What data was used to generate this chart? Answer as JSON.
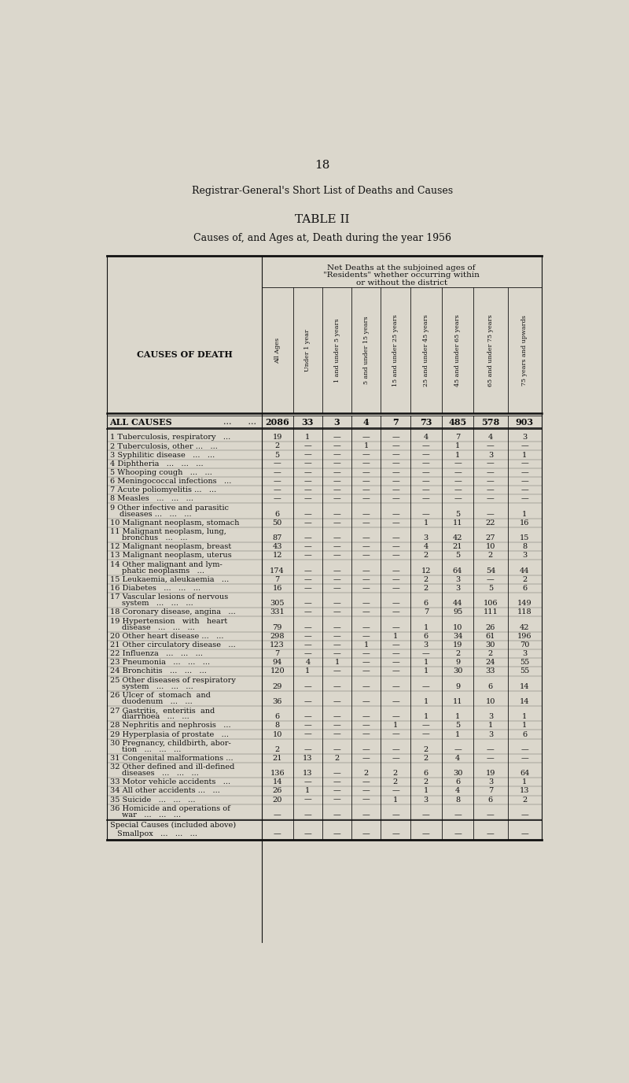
{
  "page_number": "18",
  "title1": "Registrar-General's Short List of Deaths and Causes",
  "title2": "TABLE II",
  "title3": "Causes of, and Ages at, Death during the year 1956",
  "row_label_header": "CAUSES OF DEATH",
  "all_causes_label": "ALL CAUSES",
  "all_causes_dots": "...      ...",
  "all_causes_data": [
    "2086",
    "33",
    "3",
    "4",
    "7",
    "73",
    "485",
    "578",
    "903"
  ],
  "rows": [
    {
      "num": "1",
      "label": "Tuberculosis, respiratory   ...",
      "wrap": false,
      "data": [
        "19",
        "1",
        "—",
        "—",
        "—",
        "4",
        "7",
        "4",
        "3"
      ]
    },
    {
      "num": "2",
      "label": "Tuberculosis, other ...   ...",
      "wrap": false,
      "data": [
        "2",
        "—",
        "—",
        "1",
        "—",
        "—",
        "1",
        "—",
        "—"
      ]
    },
    {
      "num": "3",
      "label": "Syphilitic disease   ...   ...",
      "wrap": false,
      "data": [
        "5",
        "—",
        "—",
        "—",
        "—",
        "—",
        "1",
        "3",
        "1"
      ]
    },
    {
      "num": "4",
      "label": "Diphtheria   ...   ...   ...",
      "wrap": false,
      "data": [
        "—",
        "—",
        "—",
        "—",
        "—",
        "—",
        "—",
        "—",
        "—"
      ]
    },
    {
      "num": "5",
      "label": "Whooping cough   ...   ...",
      "wrap": false,
      "data": [
        "—",
        "—",
        "—",
        "—",
        "—",
        "—",
        "—",
        "—",
        "—"
      ]
    },
    {
      "num": "6",
      "label": "Meningococcal infections   ...",
      "wrap": false,
      "data": [
        "—",
        "—",
        "—",
        "—",
        "—",
        "—",
        "—",
        "—",
        "—"
      ]
    },
    {
      "num": "7",
      "label": "Acute poliomyelitis ...   ...",
      "wrap": false,
      "data": [
        "—",
        "—",
        "—",
        "—",
        "—",
        "—",
        "—",
        "—",
        "—"
      ]
    },
    {
      "num": "8",
      "label": "Measles   ...   ...   ...",
      "wrap": false,
      "data": [
        "—",
        "—",
        "—",
        "—",
        "—",
        "—",
        "—",
        "—",
        "—"
      ]
    },
    {
      "num": "9",
      "label": "Other infective and parasitic",
      "label2": "diseases ...   ...   ...",
      "wrap": true,
      "data": [
        "6",
        "—",
        "—",
        "—",
        "—",
        "—",
        "5",
        "—",
        "1"
      ]
    },
    {
      "num": "10",
      "label": "Malignant neoplasm, stomach",
      "wrap": false,
      "data": [
        "50",
        "—",
        "—",
        "—",
        "—",
        "1",
        "11",
        "22",
        "16"
      ]
    },
    {
      "num": "11",
      "label": "Malignant neoplasm, lung,",
      "label2": "bronchus   ...   ...",
      "wrap": true,
      "data": [
        "87",
        "—",
        "—",
        "—",
        "—",
        "3",
        "42",
        "27",
        "15"
      ]
    },
    {
      "num": "12",
      "label": "Malignant neoplasm, breast",
      "wrap": false,
      "data": [
        "43",
        "—",
        "—",
        "—",
        "—",
        "4",
        "21",
        "10",
        "8"
      ]
    },
    {
      "num": "13",
      "label": "Malignant neoplasm, uterus",
      "wrap": false,
      "data": [
        "12",
        "—",
        "—",
        "—",
        "—",
        "2",
        "5",
        "2",
        "3"
      ]
    },
    {
      "num": "14",
      "label": "Other malignant and lym-",
      "label2": "phatic neoplasms   ...",
      "wrap": true,
      "data": [
        "174",
        "—",
        "—",
        "—",
        "—",
        "12",
        "64",
        "54",
        "44"
      ]
    },
    {
      "num": "15",
      "label": "Leukaemia, aleukaemia   ...",
      "wrap": false,
      "data": [
        "7",
        "—",
        "—",
        "—",
        "—",
        "2",
        "3",
        "—",
        "2"
      ]
    },
    {
      "num": "16",
      "label": "Diabetes   ...   ...   ...",
      "wrap": false,
      "data": [
        "16",
        "—",
        "—",
        "—",
        "—",
        "2",
        "3",
        "5",
        "6"
      ]
    },
    {
      "num": "17",
      "label": "Vascular lesions of nervous",
      "label2": "system   ...   ...   ...",
      "wrap": true,
      "data": [
        "305",
        "—",
        "—",
        "—",
        "—",
        "6",
        "44",
        "106",
        "149"
      ]
    },
    {
      "num": "18",
      "label": "Coronary disease, angina   ...",
      "wrap": false,
      "data": [
        "331",
        "—",
        "—",
        "—",
        "—",
        "7",
        "95",
        "111",
        "118"
      ]
    },
    {
      "num": "19",
      "label": "Hypertension   with   heart",
      "label2": "disease   ...   ...   ...",
      "wrap": true,
      "data": [
        "79",
        "—",
        "—",
        "—",
        "—",
        "1",
        "10",
        "26",
        "42"
      ]
    },
    {
      "num": "20",
      "label": "Other heart disease ...   ...",
      "wrap": false,
      "data": [
        "298",
        "—",
        "—",
        "—",
        "1",
        "6",
        "34",
        "61",
        "196"
      ]
    },
    {
      "num": "21",
      "label": "Other circulatory disease   ...",
      "wrap": false,
      "data": [
        "123",
        "—",
        "—",
        "1",
        "—",
        "3",
        "19",
        "30",
        "70"
      ]
    },
    {
      "num": "22",
      "label": "Influenza   ...   ...   ...",
      "wrap": false,
      "data": [
        "7",
        "—",
        "—",
        "—",
        "—",
        "—",
        "2",
        "2",
        "3"
      ]
    },
    {
      "num": "23",
      "label": "Pneumonia   ...   ...   ...",
      "wrap": false,
      "data": [
        "94",
        "4",
        "1",
        "—",
        "—",
        "1",
        "9",
        "24",
        "55"
      ]
    },
    {
      "num": "24",
      "label": "Bronchitis   ...   ...   ...",
      "wrap": false,
      "data": [
        "120",
        "1",
        "—",
        "—",
        "—",
        "1",
        "30",
        "33",
        "55"
      ]
    },
    {
      "num": "25",
      "label": "Other diseases of respiratory",
      "label2": "system   ...   ...   ...",
      "wrap": true,
      "data": [
        "29",
        "—",
        "—",
        "—",
        "—",
        "—",
        "9",
        "6",
        "14"
      ]
    },
    {
      "num": "26",
      "label": "Ulcer of  stomach  and",
      "label2": "duodenum   ...   ...",
      "wrap": true,
      "data": [
        "36",
        "—",
        "—",
        "—",
        "—",
        "1",
        "11",
        "10",
        "14"
      ]
    },
    {
      "num": "27",
      "label": "Gastritis,  enteritis  and",
      "label2": "diarrhoea   ...   ...",
      "wrap": true,
      "data": [
        "6",
        "—",
        "—",
        "—",
        "—",
        "1",
        "1",
        "3",
        "1"
      ]
    },
    {
      "num": "28",
      "label": "Nephritis and nephrosis   ...",
      "wrap": false,
      "data": [
        "8",
        "—",
        "—",
        "—",
        "1",
        "—",
        "5",
        "1",
        "1"
      ]
    },
    {
      "num": "29",
      "label": "Hyperplasia of prostate   ...",
      "wrap": false,
      "data": [
        "10",
        "—",
        "—",
        "—",
        "—",
        "—",
        "1",
        "3",
        "6"
      ]
    },
    {
      "num": "30",
      "label": "Pregnancy, childbirth, abor-",
      "label2": "tion   ...   ...   ...",
      "wrap": true,
      "data": [
        "2",
        "—",
        "—",
        "—",
        "—",
        "2",
        "—",
        "—",
        "—"
      ]
    },
    {
      "num": "31",
      "label": "Congenital malformations ...",
      "wrap": false,
      "data": [
        "21",
        "13",
        "2",
        "—",
        "—",
        "2",
        "4",
        "—",
        "—"
      ]
    },
    {
      "num": "32",
      "label": "Other defined and ill-defined",
      "label2": "diseases   ...   ...   ...",
      "wrap": true,
      "data": [
        "136",
        "13",
        "—",
        "2",
        "2",
        "6",
        "30",
        "19",
        "64"
      ]
    },
    {
      "num": "33",
      "label": "Motor vehicle accidents   ...",
      "wrap": false,
      "data": [
        "14",
        "—",
        "—",
        "—",
        "2",
        "2",
        "6",
        "3",
        "1"
      ]
    },
    {
      "num": "34",
      "label": "All other accidents ...   ...",
      "wrap": false,
      "data": [
        "26",
        "1",
        "—",
        "—",
        "—",
        "1",
        "4",
        "7",
        "13"
      ]
    },
    {
      "num": "35",
      "label": "Suicide   ...   ...   ...",
      "wrap": false,
      "data": [
        "20",
        "—",
        "—",
        "—",
        "1",
        "3",
        "8",
        "6",
        "2"
      ]
    },
    {
      "num": "36",
      "label": "Homicide and operations of",
      "label2": "war   ...   ...   ...",
      "wrap": true,
      "data": [
        "—",
        "—",
        "—",
        "—",
        "—",
        "—",
        "—",
        "—",
        "—"
      ]
    }
  ],
  "special_causes_header": "Special Causes (included above)",
  "special_smallpox_label": "Smallpox   ...   ...   ...",
  "special_smallpox_data": [
    "—",
    "—",
    "—",
    "—",
    "—",
    "—",
    "—",
    "—",
    "—"
  ],
  "bg_color": "#dbd7cc",
  "text_color": "#111111",
  "line_color": "#111111",
  "col_header_texts": [
    "All Ages",
    "Under 1 year",
    "1 and under 5 years",
    "5 and under 15 years",
    "15 and under 25 years",
    "25 and under 45 years",
    "45 and under 65 years",
    "65 and under 75 years",
    "75 years and upwards"
  ]
}
